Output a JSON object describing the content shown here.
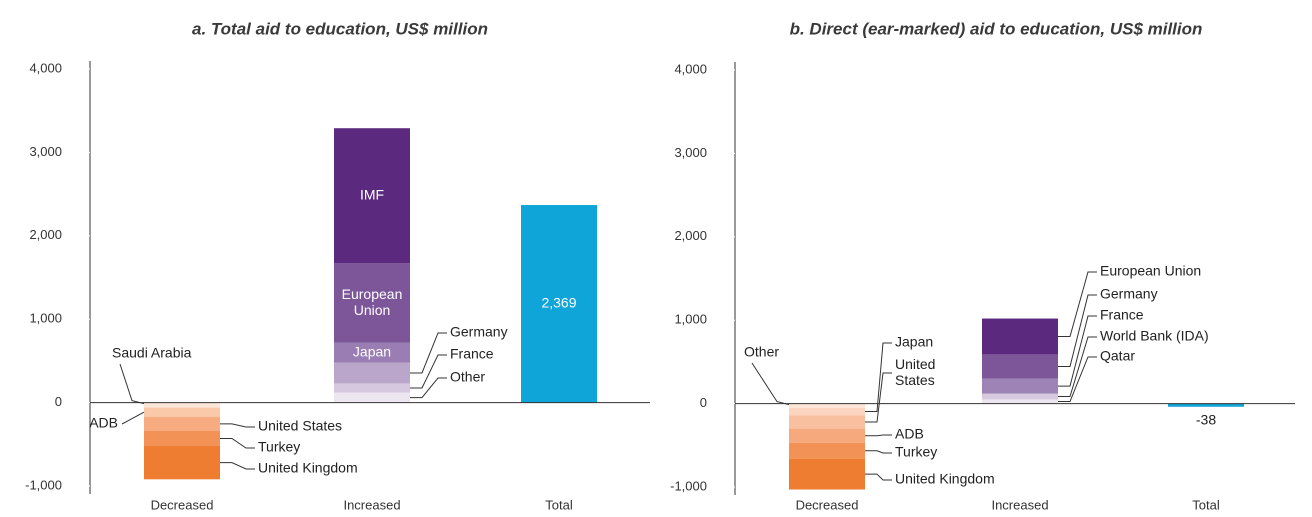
{
  "chart_data": [
    {
      "type": "waterfall-stack",
      "title": "a. Total aid to education, US$ million",
      "categories": [
        "Decreased",
        "Increased",
        "Total"
      ],
      "ylim": [
        -1000,
        4000
      ],
      "yticks": [
        {
          "value": -1000,
          "label": "-1,000"
        },
        0,
        {
          "value": 1000,
          "label": "1,000"
        },
        {
          "value": 2000,
          "label": "2,000"
        },
        {
          "value": 3000,
          "label": "3,000"
        },
        {
          "value": 4000,
          "label": "4,000"
        }
      ],
      "series": [
        {
          "name": "Saudi Arabia",
          "color": "#fde6d8",
          "values": [
            -60,
            null,
            null
          ]
        },
        {
          "name": "ADB",
          "color": "#f9c9a9",
          "values": [
            -110,
            null,
            null
          ]
        },
        {
          "name": "United States",
          "color": "#f6ab80",
          "values": [
            -170,
            null,
            null
          ]
        },
        {
          "name": "Turkey",
          "color": "#f39257",
          "values": [
            -180,
            null,
            null
          ]
        },
        {
          "name": "United Kingdom",
          "color": "#ee7d31",
          "values": [
            -400,
            null,
            null
          ]
        },
        {
          "name": "Other",
          "color": "#ece6f1",
          "values": [
            null,
            120,
            null
          ]
        },
        {
          "name": "France",
          "color": "#d5c8df",
          "values": [
            null,
            110,
            null
          ]
        },
        {
          "name": "Germany",
          "color": "#baa6cb",
          "values": [
            null,
            250,
            null
          ]
        },
        {
          "name": "Japan",
          "color": "#9a7db2",
          "values": [
            null,
            240,
            null
          ]
        },
        {
          "name": "European Union",
          "color": "#7d5699",
          "values": [
            null,
            950,
            null
          ]
        },
        {
          "name": "IMF",
          "color": "#5b2a7e",
          "values": [
            null,
            1620,
            null
          ]
        },
        {
          "name": "Total",
          "color": "#0fa5d9",
          "values": [
            null,
            null,
            2369
          ],
          "value_labels": [
            null,
            null,
            "2,369"
          ]
        }
      ]
    },
    {
      "type": "waterfall-stack",
      "title": "b. Direct (ear-marked) aid to education, US$ million",
      "categories": [
        "Decreased",
        "Increased",
        "Total"
      ],
      "ylim": [
        -1000,
        4000
      ],
      "yticks": [
        {
          "value": -1000,
          "label": "-1,000"
        },
        0,
        {
          "value": 1000,
          "label": "1,000"
        },
        {
          "value": 2000,
          "label": "2,000"
        },
        {
          "value": 3000,
          "label": "3,000"
        },
        {
          "value": 4000,
          "label": "4,000"
        }
      ],
      "series": [
        {
          "name": "Other",
          "color": "#fde6d8",
          "values": [
            -50,
            null,
            null
          ]
        },
        {
          "name": "Japan",
          "color": "#fbd5bf",
          "values": [
            -90,
            null,
            null
          ]
        },
        {
          "name": "United States",
          "color": "#f9c0a0",
          "values": [
            -160,
            null,
            null
          ]
        },
        {
          "name": "ADB",
          "color": "#f6a97c",
          "values": [
            -170,
            null,
            null
          ]
        },
        {
          "name": "Turkey",
          "color": "#f39257",
          "values": [
            -190,
            null,
            null
          ]
        },
        {
          "name": "United Kingdom",
          "color": "#ee7d31",
          "values": [
            -370,
            null,
            null
          ]
        },
        {
          "name": "Qatar",
          "color": "#ece6f1",
          "values": [
            null,
            50,
            null
          ]
        },
        {
          "name": "World Bank (IDA)",
          "color": "#d5c8df",
          "values": [
            null,
            70,
            null
          ]
        },
        {
          "name": "France",
          "color": "#9e84b6",
          "values": [
            null,
            180,
            null
          ]
        },
        {
          "name": "Germany",
          "color": "#7d5699",
          "values": [
            null,
            290,
            null
          ]
        },
        {
          "name": "European Union",
          "color": "#5b2a7e",
          "values": [
            null,
            430,
            null
          ]
        },
        {
          "name": "Total",
          "color": "#0fa5d9",
          "values": [
            null,
            null,
            -38
          ],
          "value_labels": [
            null,
            null,
            "-38"
          ]
        }
      ]
    }
  ]
}
